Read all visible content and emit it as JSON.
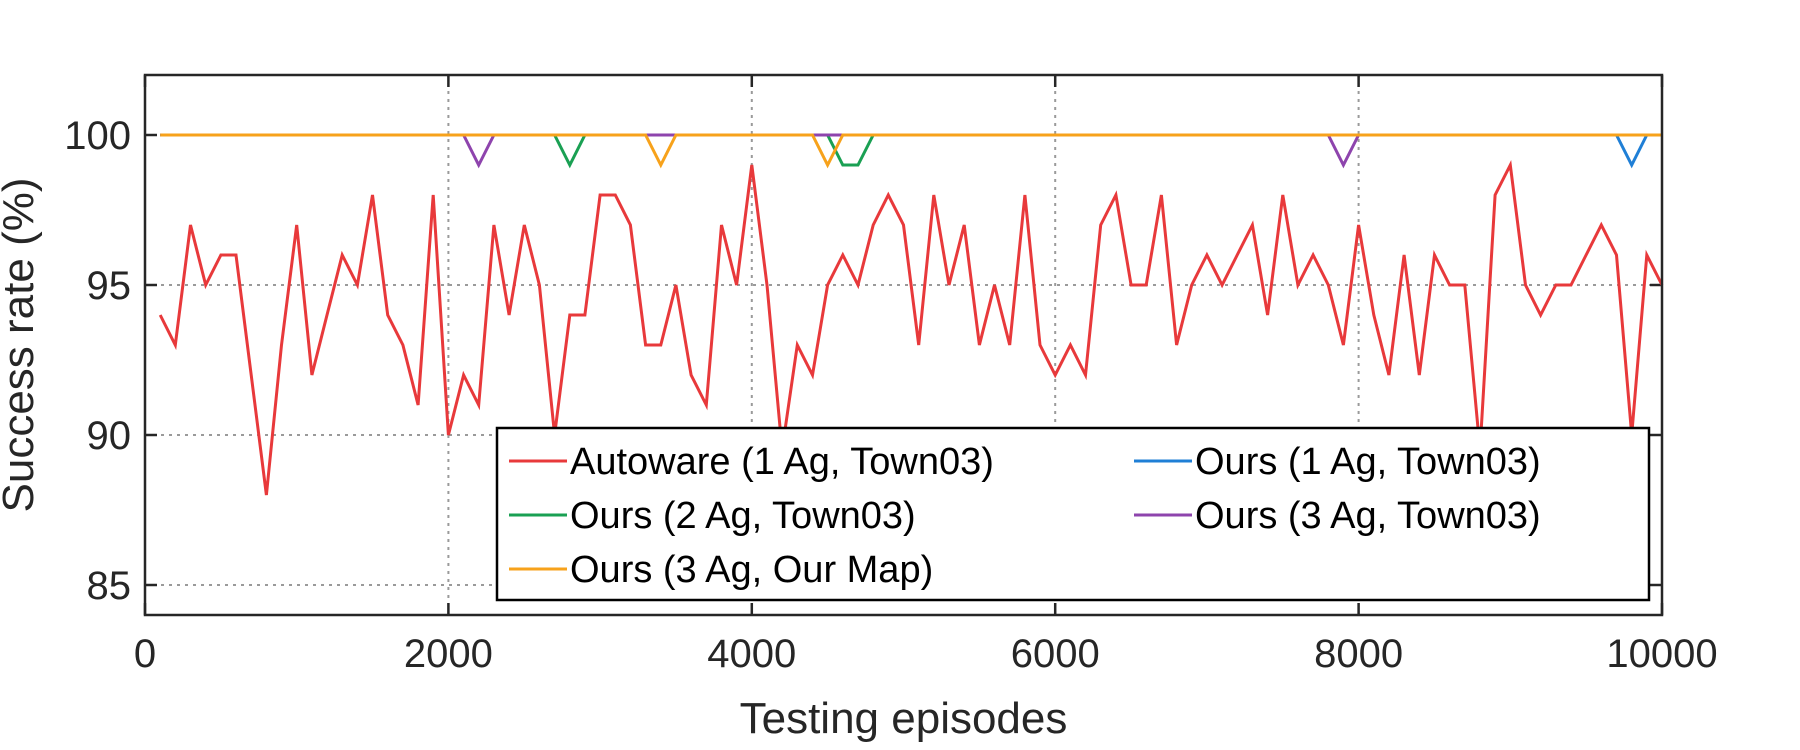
{
  "chart_data": {
    "type": "line",
    "xlabel": "Testing episodes",
    "ylabel": "Success rate (%)",
    "xlim": [
      0,
      10000
    ],
    "ylim": [
      84,
      102
    ],
    "xticks": [
      0,
      2000,
      4000,
      6000,
      8000,
      10000
    ],
    "yticks": [
      85,
      90,
      95,
      100
    ],
    "grid": true,
    "legend_position": "bottom-right",
    "x": [
      100,
      200,
      300,
      400,
      500,
      600,
      700,
      800,
      900,
      1000,
      1100,
      1200,
      1300,
      1400,
      1500,
      1600,
      1700,
      1800,
      1900,
      2000,
      2100,
      2200,
      2300,
      2400,
      2500,
      2600,
      2700,
      2800,
      2900,
      3000,
      3100,
      3200,
      3300,
      3400,
      3500,
      3600,
      3700,
      3800,
      3900,
      4000,
      4100,
      4200,
      4300,
      4400,
      4500,
      4600,
      4700,
      4800,
      4900,
      5000,
      5100,
      5200,
      5300,
      5400,
      5500,
      5600,
      5700,
      5800,
      5900,
      6000,
      6100,
      6200,
      6300,
      6400,
      6500,
      6600,
      6700,
      6800,
      6900,
      7000,
      7100,
      7200,
      7300,
      7400,
      7500,
      7600,
      7700,
      7800,
      7900,
      8000,
      8100,
      8200,
      8300,
      8400,
      8500,
      8600,
      8700,
      8800,
      8900,
      9000,
      9100,
      9200,
      9300,
      9400,
      9500,
      9600,
      9700,
      9800,
      9900,
      10000
    ],
    "series": [
      {
        "name": "Autoware (1 Ag, Town03)",
        "color": "#e8393b",
        "values": [
          94,
          93,
          97,
          95,
          96,
          96,
          92,
          88,
          93,
          97,
          92,
          94,
          96,
          95,
          98,
          94,
          93,
          91,
          98,
          90,
          92,
          91,
          97,
          94,
          97,
          95,
          90,
          94,
          94,
          98,
          98,
          97,
          93,
          93,
          95,
          92,
          91,
          97,
          95,
          99,
          95,
          89.5,
          93,
          92,
          95,
          96,
          95,
          97,
          98,
          97,
          93,
          98,
          95,
          97,
          93,
          95,
          93,
          98,
          93,
          92,
          93,
          92,
          97,
          98,
          95,
          95,
          98,
          93,
          95,
          96,
          95,
          96,
          97,
          94,
          98,
          95,
          96,
          95,
          93,
          97,
          94,
          92,
          96,
          92,
          96,
          95,
          95,
          89.5,
          98,
          99,
          95,
          94,
          95,
          95,
          96,
          97,
          96,
          90,
          96,
          95
        ]
      },
      {
        "name": "Ours (1 Ag, Town03)",
        "color": "#1f7fd6",
        "dips": [
          [
            9800,
            99
          ]
        ]
      },
      {
        "name": "Ours (2 Ag, Town03)",
        "color": "#1aa053",
        "dips": [
          [
            2800,
            99
          ],
          [
            4600,
            99
          ],
          [
            4700,
            99
          ]
        ]
      },
      {
        "name": "Ours (3 Ag, Town03)",
        "color": "#8e44ad",
        "dips": [
          [
            2200,
            99
          ],
          [
            7900,
            99
          ]
        ]
      },
      {
        "name": "Ours (3 Ag, Our Map)",
        "color": "#f7a21b",
        "dips": [
          [
            3400,
            99
          ],
          [
            4500,
            99
          ]
        ]
      }
    ]
  }
}
